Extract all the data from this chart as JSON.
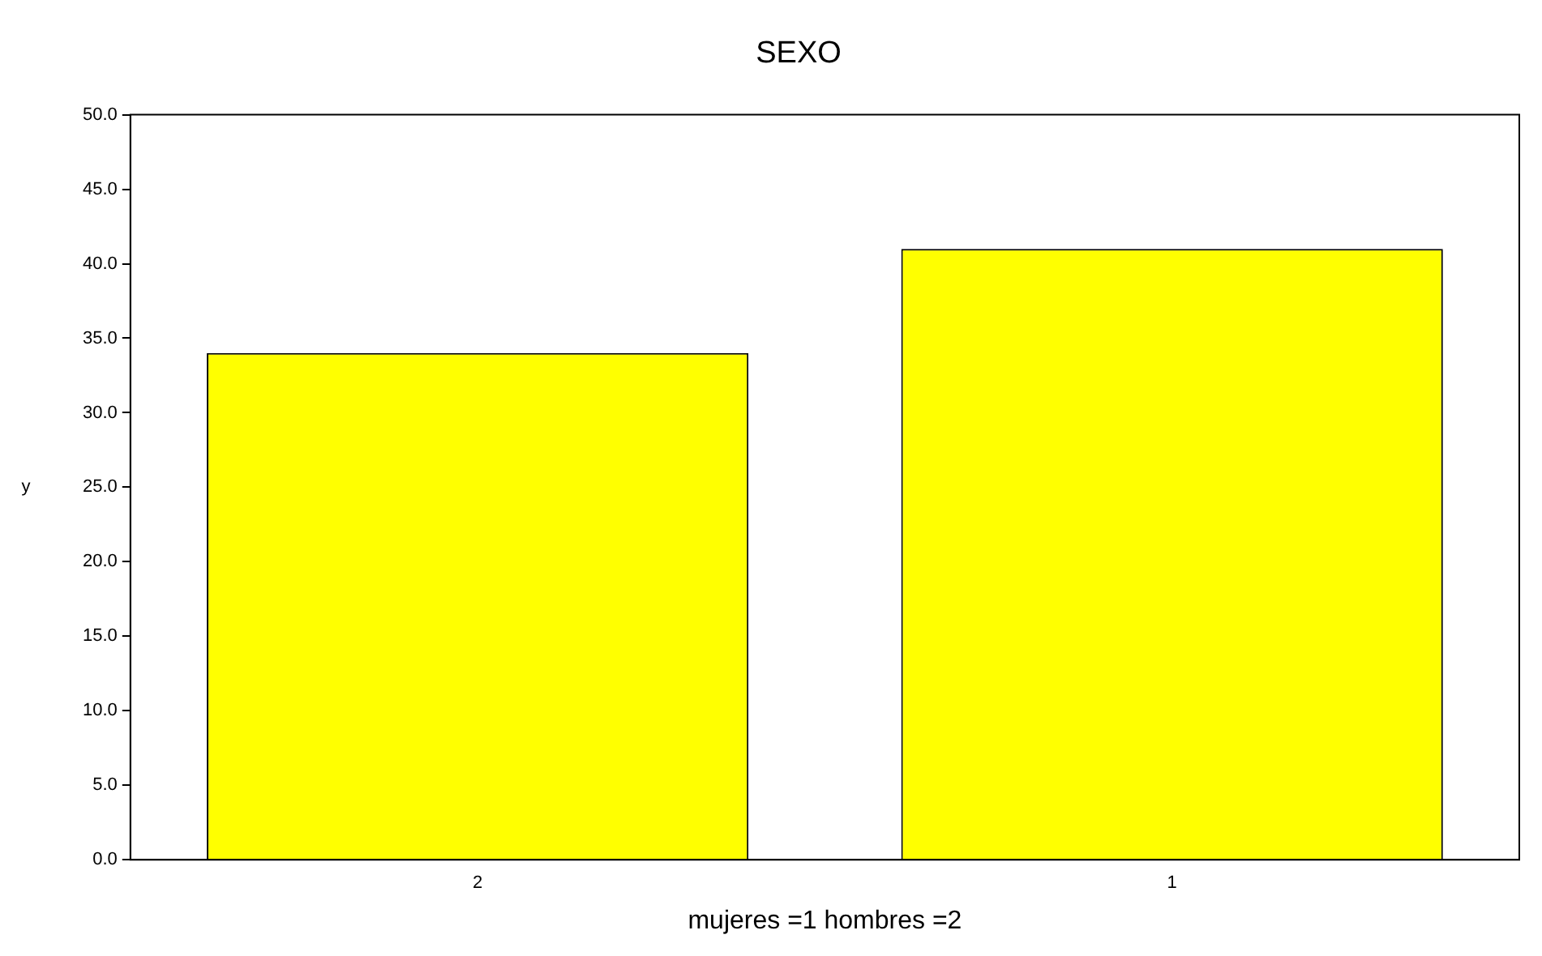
{
  "chart_data": {
    "type": "bar",
    "title": "SEXO",
    "xlabel": "mujeres =1 hombres =2",
    "ylabel": "y",
    "categories": [
      "2",
      "1"
    ],
    "values": [
      34,
      41
    ],
    "color": "#ffff00",
    "ylim": [
      0,
      50
    ],
    "yticks": [
      {
        "value": 0,
        "label": "0.0"
      },
      {
        "value": 5,
        "label": "5.0"
      },
      {
        "value": 10,
        "label": "10.0"
      },
      {
        "value": 15,
        "label": "15.0"
      },
      {
        "value": 20,
        "label": "20.0"
      },
      {
        "value": 25,
        "label": "25.0"
      },
      {
        "value": 30,
        "label": "30.0"
      },
      {
        "value": 35,
        "label": "35.0"
      },
      {
        "value": 40,
        "label": "40.0"
      },
      {
        "value": 45,
        "label": "45.0"
      },
      {
        "value": 50,
        "label": "50.0"
      }
    ],
    "grid": false,
    "legend": false
  }
}
